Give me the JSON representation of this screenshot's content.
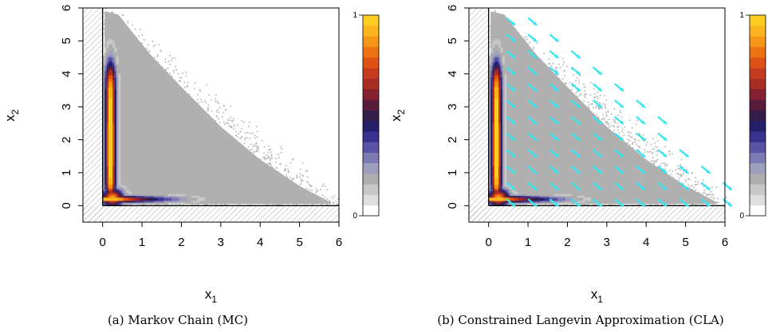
{
  "chart_data": [
    {
      "type": "heatmap",
      "title": "",
      "caption": "(a)  Markov Chain (MC)",
      "xlabel": "x",
      "xlabel_sub": "1",
      "ylabel": "x",
      "ylabel_sub": "2",
      "xlim": [
        -0.5,
        6
      ],
      "ylim": [
        -0.5,
        6
      ],
      "xticks": [
        0,
        1,
        2,
        3,
        4,
        5,
        6
      ],
      "yticks": [
        0,
        1,
        2,
        3,
        4,
        5,
        6
      ],
      "colorbar": {
        "min_label": "0",
        "max_label": "1",
        "range": [
          0,
          1
        ]
      },
      "density_description": "2D density concentrated along an L-shaped ridge near x1≈0.2 (x2 from 0.3 to 4.3) and x2≈0.2 (x1 from 0.3 to 2.2); sparse gray support inside the triangle x1 + x2 ≤ 6",
      "constraint": "shaded (infeasible) region x1 < 0 or x2 < 0",
      "vector_field": false
    },
    {
      "type": "heatmap",
      "title": "",
      "caption": "(b)  Constrained Langevin Approximation (CLA)",
      "xlabel": "x",
      "xlabel_sub": "1",
      "ylabel": "x",
      "ylabel_sub": "2",
      "xlim": [
        -0.5,
        6
      ],
      "ylim": [
        -0.5,
        6
      ],
      "xticks": [
        0,
        1,
        2,
        3,
        4,
        5,
        6
      ],
      "yticks": [
        0,
        1,
        2,
        3,
        4,
        5,
        6
      ],
      "colorbar": {
        "min_label": "0",
        "max_label": "1",
        "range": [
          0,
          1
        ]
      },
      "density_description": "Same L-shaped ridge density as (a) with cyan drift-field arrows overlaid on a regular grid, pointing toward the lower right",
      "constraint": "shaded (infeasible) region x1 < 0 or x2 < 0",
      "vector_field": true,
      "arrow_color": "#33e6f0"
    }
  ],
  "colors": {
    "support_gray": "#b0b0b0",
    "palette": [
      "#ffffff",
      "#dedede",
      "#c8c8c8",
      "#adadad",
      "#9d9fbc",
      "#7e7ab4",
      "#5a52a4",
      "#38338e",
      "#26206a",
      "#341c4a",
      "#5a1c3c",
      "#842232",
      "#a82d22",
      "#c43a1c",
      "#de5215",
      "#ec7212",
      "#f59618",
      "#fbb41e",
      "#ffcc22"
    ],
    "hatch": "#b4b4b4"
  }
}
